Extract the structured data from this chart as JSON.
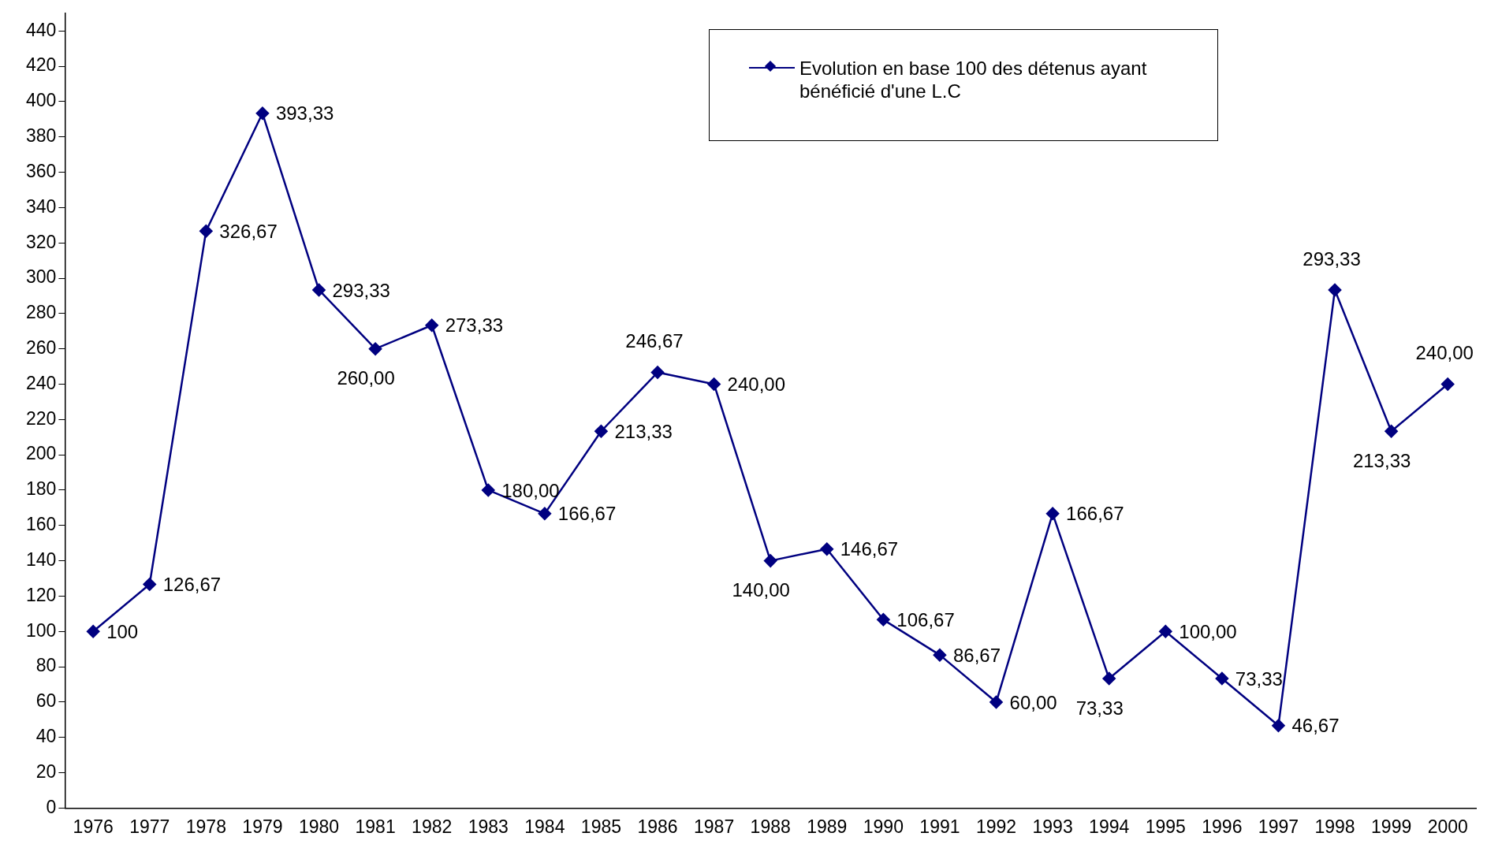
{
  "chart_data": {
    "type": "line",
    "categories": [
      "1976",
      "1977",
      "1978",
      "1979",
      "1980",
      "1981",
      "1982",
      "1983",
      "1984",
      "1985",
      "1986",
      "1987",
      "1988",
      "1989",
      "1990",
      "1991",
      "1992",
      "1993",
      "1994",
      "1995",
      "1996",
      "1997",
      "1998",
      "1999",
      "2000"
    ],
    "series": [
      {
        "name": "Evolution en base 100 des détenus ayant bénéficié d'une L.C",
        "color": "#000080",
        "values": [
          100,
          126.67,
          326.67,
          393.33,
          293.33,
          260,
          273.33,
          180,
          166.67,
          213.33,
          246.67,
          240,
          140,
          146.67,
          106.67,
          86.67,
          60,
          166.67,
          73.33,
          100,
          73.33,
          46.67,
          293.33,
          213.33,
          240
        ],
        "value_labels": [
          "100",
          "126,67",
          "326,67",
          "393,33",
          "293,33",
          "260,00",
          "273,33",
          "180,00",
          "166,67",
          "213,33",
          "246,67",
          "240,00",
          "140,00",
          "146,67",
          "106,67",
          "86,67",
          "60,00",
          "166,67",
          "73,33",
          "100,00",
          "73,33",
          "46,67",
          "293,33",
          "213,33",
          "240,00"
        ]
      }
    ],
    "ylim": [
      0,
      450
    ],
    "yticks": [
      0,
      20,
      40,
      60,
      80,
      100,
      120,
      140,
      160,
      180,
      200,
      220,
      240,
      260,
      280,
      300,
      320,
      340,
      360,
      380,
      400,
      420,
      440
    ],
    "grid": false,
    "legend": "top right",
    "marker": "diamond",
    "line_style": "solid"
  }
}
